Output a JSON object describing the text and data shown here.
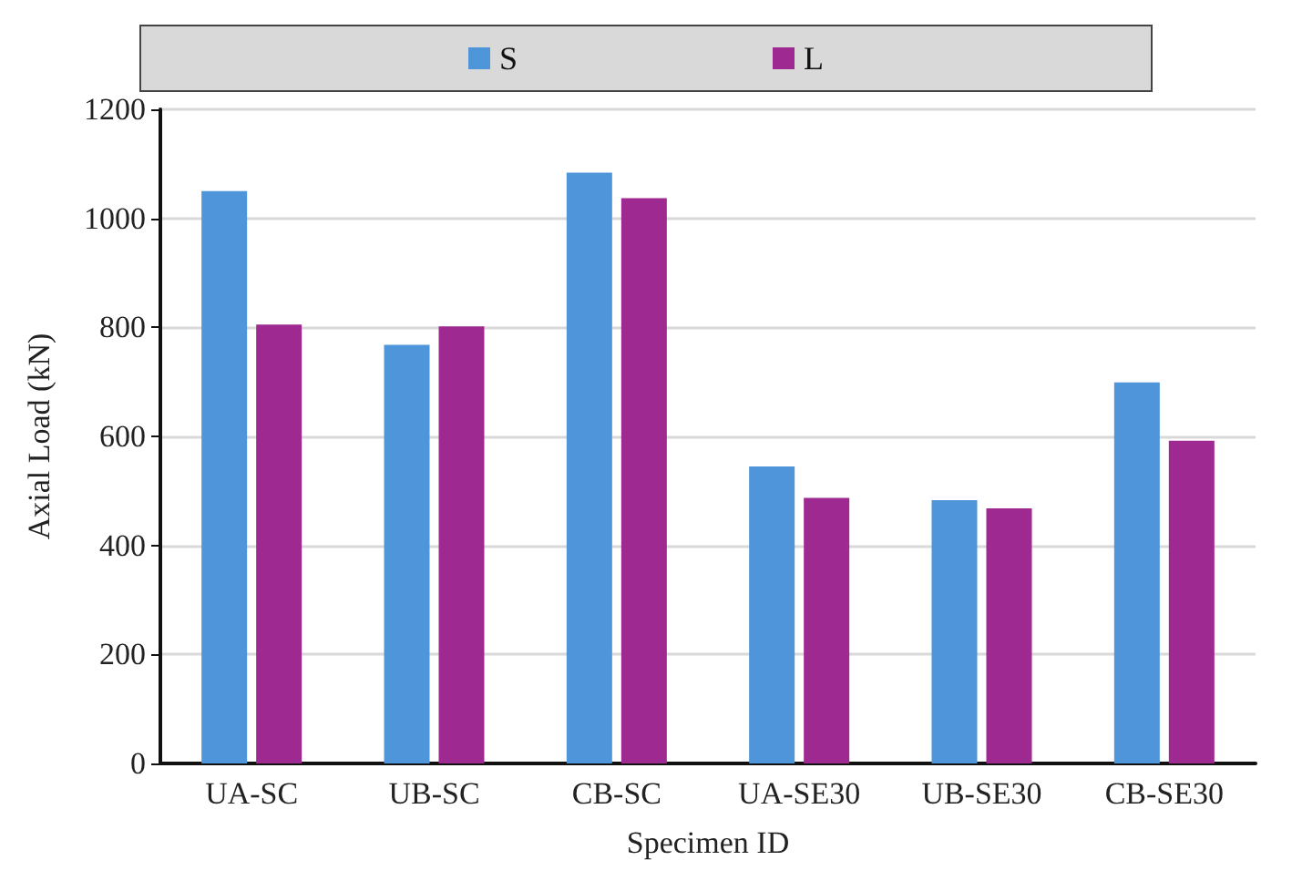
{
  "chart_data": {
    "type": "bar",
    "xlabel": "Specimen ID",
    "ylabel": "Axial Load (kN)",
    "categories": [
      "UA-SC",
      "UB-SC",
      "CB-SC",
      "UA-SE30",
      "UB-SE30",
      "CB-SE30"
    ],
    "series": [
      {
        "name": "S",
        "color": "#4f95d9",
        "values": [
          1050,
          768,
          1084,
          545,
          483,
          699
        ]
      },
      {
        "name": "L",
        "color": "#9e2a91",
        "values": [
          805,
          802,
          1037,
          487,
          468,
          592
        ]
      }
    ],
    "ylim": [
      0,
      1200
    ],
    "yticks": [
      0,
      200,
      400,
      600,
      800,
      1000,
      1200
    ],
    "grid": "y",
    "legend": "top"
  }
}
